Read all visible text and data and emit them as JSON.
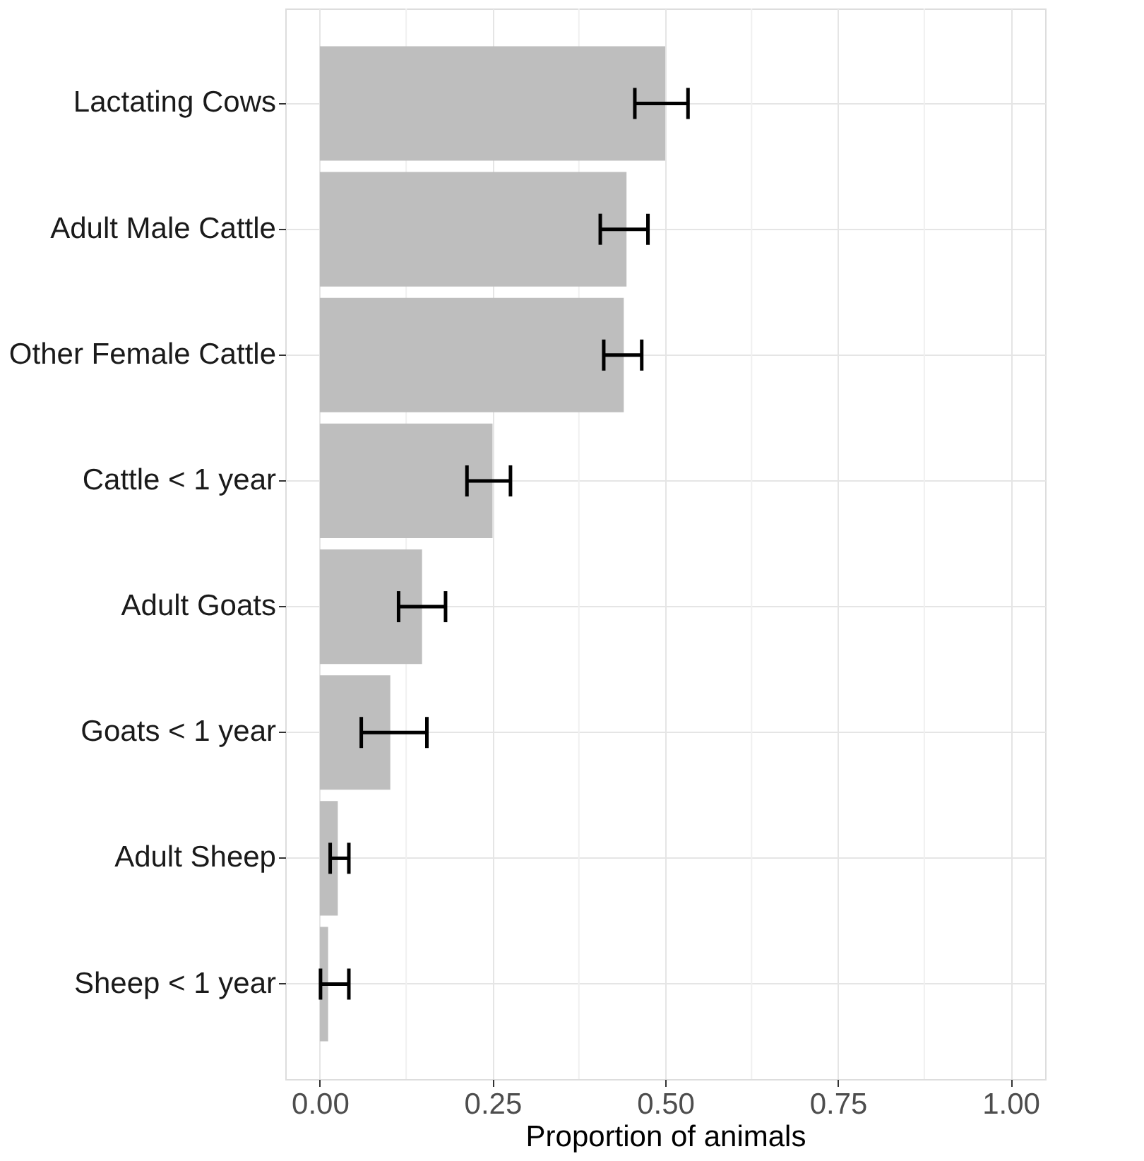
{
  "chart_data": {
    "type": "bar",
    "orientation": "horizontal",
    "xlabel": "Proportion of animals",
    "categories": [
      "Lactating Cows",
      "Adult Male Cattle",
      "Other Female Cattle",
      "Cattle < 1 year",
      "Adult Goats",
      "Goats < 1 year",
      "Adult Sheep",
      "Sheep < 1 year"
    ],
    "values": [
      0.5,
      0.444,
      0.44,
      0.25,
      0.148,
      0.102,
      0.026,
      0.012
    ],
    "errors": [
      [
        0.456,
        0.533
      ],
      [
        0.406,
        0.475
      ],
      [
        0.411,
        0.466
      ],
      [
        0.213,
        0.276
      ],
      [
        0.114,
        0.182
      ],
      [
        0.06,
        0.155
      ],
      [
        0.015,
        0.042
      ],
      [
        0.001,
        0.042
      ]
    ],
    "color": "#bebebe",
    "xlim": [
      -0.05,
      1.05
    ],
    "xticks": [
      {
        "value": 0,
        "label": "0.00"
      },
      {
        "value": 0.25,
        "label": "0.25"
      },
      {
        "value": 0.5,
        "label": "0.50"
      },
      {
        "value": 0.75,
        "label": "0.75"
      },
      {
        "value": 1,
        "label": "1.00"
      }
    ],
    "grid": true
  }
}
